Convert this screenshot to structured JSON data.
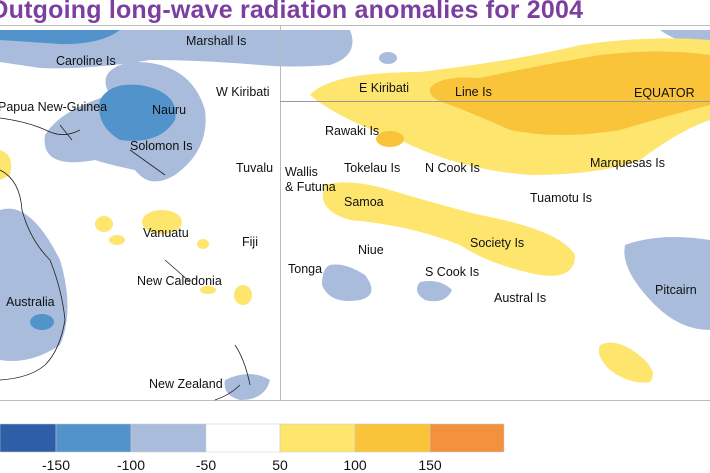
{
  "title": "Outgoing long-wave radiation anomalies for 2004",
  "labels": {
    "marshall": "Marshall Is",
    "caroline": "Caroline Is",
    "w_kiribati": "W Kiribati",
    "e_kiribati": "E Kiribati",
    "line": "Line Is",
    "equator": "EQUATOR",
    "png": "Papua New-Guinea",
    "nauru": "Nauru",
    "rawaki": "Rawaki Is",
    "solomon": "Solomon Is",
    "tuvalu": "Tuvalu",
    "wallis1": "Wallis",
    "wallis2": "& Futuna",
    "tokelau": "Tokelau Is",
    "ncook": "N Cook Is",
    "marquesas": "Marquesas Is",
    "samoa": "Samoa",
    "tuamotu": "Tuamotu Is",
    "vanuatu": "Vanuatu",
    "fiji": "Fiji",
    "niue": "Niue",
    "society": "Society Is",
    "tonga": "Tonga",
    "scook": "S Cook Is",
    "newcal": "New Caledonia",
    "austral": "Austral Is",
    "pitcairn": "Pitcairn",
    "australia": "Australia",
    "nz": "New Zealand"
  },
  "legend": {
    "colors": [
      "#2e5ea8",
      "#5293cc",
      "#a9bcdc",
      "#ffffff",
      "#fde56e",
      "#f9c33a",
      "#f3923c"
    ],
    "ticks": [
      "-150",
      "-100",
      "-50",
      "50",
      "100",
      "150"
    ]
  }
}
